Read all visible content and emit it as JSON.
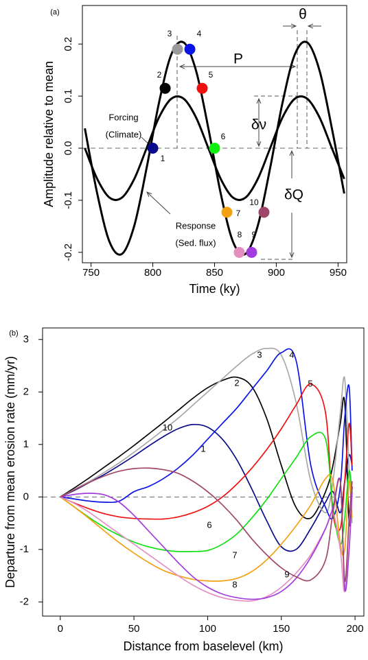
{
  "chart_data": [
    {
      "type": "line",
      "panel_label": "(a)",
      "xlabel": "Time (ky)",
      "ylabel": "Amplitude relative to mean",
      "xlim": [
        743,
        957
      ],
      "ylim": [
        -0.22,
        0.274
      ],
      "xticks": [
        750,
        800,
        850,
        900,
        950
      ],
      "yticks": [
        -0.2,
        -0.1,
        {
          "value": 0,
          "label": "0.0"
        },
        0.1,
        0.2
      ],
      "x": [
        745,
        755,
        765,
        775,
        785,
        795,
        805,
        815,
        825,
        835,
        845,
        855,
        865,
        875,
        885,
        895,
        905,
        915,
        925,
        935,
        945,
        955
      ],
      "series": [
        {
          "color": "#000000",
          "values": [
            0,
            -0.059,
            -0.095,
            -0.095,
            -0.059,
            0,
            0.059,
            0.095,
            0.095,
            0.059,
            0,
            -0.059,
            -0.095,
            -0.095,
            -0.059,
            0,
            0.059,
            0.095,
            0.095,
            0.059,
            0,
            -0.059
          ]
        },
        {
          "color": "#000000",
          "values": [
            0.038,
            -0.087,
            -0.18,
            -0.203,
            -0.149,
            -0.038,
            0.087,
            0.18,
            0.203,
            0.149,
            0.038,
            -0.087,
            -0.18,
            -0.203,
            -0.149,
            -0.038,
            0.087,
            0.18,
            0.203,
            0.149,
            0.038,
            -0.087
          ]
        }
      ],
      "markers": {
        "x": [
          800,
          810,
          820,
          830,
          840,
          850,
          860,
          870,
          880,
          890
        ],
        "values": [
          0,
          0.115,
          0.19,
          0.19,
          0.115,
          0,
          -0.123,
          -0.2,
          -0.2,
          -0.123
        ],
        "colors": [
          "#0a0a8c",
          "#000000",
          "#9a9a9a",
          "#0a14e6",
          "#f01010",
          "#10f010",
          "#f5a010",
          "#e58fc0",
          "#a23be0",
          "#a0466a"
        ],
        "labels": [
          "1",
          "2",
          "3",
          "4",
          "5",
          "6",
          "7",
          "8",
          "9",
          "10"
        ]
      },
      "annotations": [
        "Forcing",
        "(Climate)",
        "Response",
        "(Sed. flux)",
        "P",
        "δν",
        "δQ",
        "θ"
      ]
    },
    {
      "type": "line",
      "panel_label": "(b)",
      "xlabel": "Distance from baselevel (km)",
      "ylabel": "Departure from mean erosion rate (mm/yr)",
      "xlim": [
        -12,
        206
      ],
      "ylim": [
        -2.27,
        3.22
      ],
      "xticks": [
        0,
        50,
        100,
        150,
        200
      ],
      "yticks": [
        -2,
        -1,
        0,
        1,
        2,
        3
      ],
      "x": [
        0,
        10,
        20,
        30,
        40,
        50,
        60,
        70,
        80,
        90,
        100,
        110,
        120,
        130,
        140,
        150,
        160,
        170,
        180,
        185,
        190,
        193,
        196,
        198
      ],
      "series": [
        {
          "name": "1",
          "color": "#0a0a8c",
          "values": [
            0,
            0.13,
            0.28,
            0.43,
            0.6,
            0.78,
            0.97,
            1.15,
            1.3,
            1.38,
            1.33,
            1.1,
            0.7,
            0.15,
            -0.45,
            -0.95,
            -1.0,
            -0.6,
            -0.1,
            0.1,
            -0.3,
            0.3,
            0.8,
            0.6
          ]
        },
        {
          "name": "2",
          "color": "#000000",
          "values": [
            0,
            0.18,
            0.37,
            0.57,
            0.77,
            0.98,
            1.2,
            1.42,
            1.65,
            1.88,
            2.08,
            2.22,
            2.28,
            2.1,
            1.5,
            0.6,
            -0.2,
            -0.4,
            0.1,
            0.6,
            1.4,
            1.8,
            -0.5,
            0.2
          ]
        },
        {
          "name": "3",
          "color": "#a8a8a8",
          "values": [
            0,
            0.15,
            0.3,
            0.47,
            0.65,
            0.85,
            1.06,
            1.28,
            1.5,
            1.75,
            2.0,
            2.25,
            2.5,
            2.72,
            2.83,
            2.7,
            1.8,
            0.3,
            -0.3,
            0.3,
            1.6,
            2.25,
            0.5,
            -0.5
          ]
        },
        {
          "name": "4",
          "color": "#0a14e6",
          "values": [
            0,
            -0.04,
            -0.08,
            -0.1,
            -0.08,
            0.1,
            0.2,
            0.35,
            0.55,
            0.8,
            1.1,
            1.4,
            1.7,
            2.05,
            2.4,
            2.75,
            2.6,
            0.6,
            -0.2,
            -0.4,
            0.2,
            1.5,
            2.1,
            0.5
          ]
        },
        {
          "name": "5",
          "color": "#f01010",
          "values": [
            0,
            -0.12,
            -0.23,
            -0.32,
            -0.38,
            -0.41,
            -0.42,
            -0.42,
            -0.38,
            -0.3,
            -0.18,
            0.0,
            0.25,
            0.55,
            0.9,
            1.3,
            1.75,
            2.15,
            1.6,
            -0.3,
            -0.6,
            0.3,
            1.4,
            0.6
          ]
        },
        {
          "name": "6",
          "color": "#10e010",
          "values": [
            0,
            -0.2,
            -0.4,
            -0.58,
            -0.73,
            -0.86,
            -0.95,
            -1.01,
            -1.04,
            -1.04,
            -1.02,
            -0.9,
            -0.7,
            -0.4,
            -0.05,
            0.35,
            0.75,
            1.15,
            1.1,
            -0.2,
            -0.9,
            -0.4,
            0.5,
            0
          ]
        },
        {
          "name": "7",
          "color": "#f5a010",
          "values": [
            0,
            -0.2,
            -0.42,
            -0.65,
            -0.87,
            -1.07,
            -1.25,
            -1.4,
            -1.5,
            -1.57,
            -1.6,
            -1.6,
            -1.55,
            -1.42,
            -1.2,
            -0.9,
            -0.55,
            -0.15,
            0.35,
            0.3,
            -0.9,
            -1.0,
            0.3,
            -0.4
          ]
        },
        {
          "name": "8",
          "color": "#e58fc0",
          "values": [
            0,
            -0.13,
            -0.3,
            -0.5,
            -0.7,
            -0.9,
            -1.1,
            -1.3,
            -1.5,
            -1.68,
            -1.82,
            -1.92,
            -1.97,
            -1.98,
            -1.9,
            -1.72,
            -1.45,
            -1.1,
            -0.6,
            -0.3,
            -1.0,
            -1.8,
            -0.5,
            0.3
          ]
        },
        {
          "name": "9",
          "color": "#a23be0",
          "values": [
            0,
            0.05,
            0.07,
            0.04,
            -0.1,
            -0.35,
            -0.65,
            -0.95,
            -1.25,
            -1.52,
            -1.72,
            -1.85,
            -1.92,
            -1.95,
            -1.92,
            -1.8,
            -1.55,
            -1.15,
            -0.6,
            -0.2,
            0.3,
            -1.75,
            -1.0,
            0.1
          ]
        },
        {
          "name": "10",
          "color": "#a0466a",
          "values": [
            0,
            0.14,
            0.28,
            0.4,
            0.49,
            0.54,
            0.55,
            0.52,
            0.45,
            0.3,
            0.1,
            -0.15,
            -0.45,
            -0.8,
            -1.1,
            -1.35,
            -1.52,
            -1.58,
            -1.2,
            -0.3,
            0.3,
            -1.6,
            -0.4,
            0.3
          ]
        }
      ]
    }
  ]
}
